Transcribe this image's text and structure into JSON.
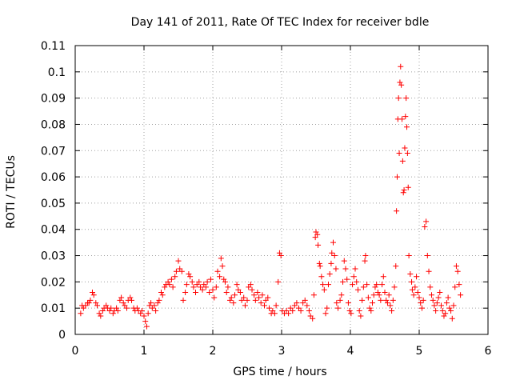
{
  "chart_data": {
    "type": "scatter",
    "title": "Day 141 of 2011, Rate Of TEC Index for receiver bdle",
    "xlabel": "GPS time / hours",
    "ylabel": "ROTI / TECUs",
    "xlim": [
      0,
      6
    ],
    "ylim": [
      0,
      0.11
    ],
    "xticks": [
      "0",
      "1",
      "2",
      "3",
      "4",
      "5",
      "6"
    ],
    "yticks": [
      "0",
      "0.01",
      "0.02",
      "0.03",
      "0.04",
      "0.05",
      "0.06",
      "0.07",
      "0.08",
      "0.09",
      "0.1",
      "0.11"
    ],
    "grid": true,
    "marker": "+",
    "color": "#ff0000",
    "series": [
      {
        "name": "ROTI",
        "points": [
          [
            0.08,
            0.008
          ],
          [
            0.1,
            0.011
          ],
          [
            0.12,
            0.01
          ],
          [
            0.15,
            0.011
          ],
          [
            0.18,
            0.012
          ],
          [
            0.2,
            0.012
          ],
          [
            0.22,
            0.013
          ],
          [
            0.25,
            0.016
          ],
          [
            0.27,
            0.015
          ],
          [
            0.3,
            0.012
          ],
          [
            0.32,
            0.011
          ],
          [
            0.35,
            0.008
          ],
          [
            0.37,
            0.007
          ],
          [
            0.4,
            0.009
          ],
          [
            0.42,
            0.01
          ],
          [
            0.45,
            0.011
          ],
          [
            0.47,
            0.01
          ],
          [
            0.5,
            0.009
          ],
          [
            0.52,
            0.01
          ],
          [
            0.55,
            0.008
          ],
          [
            0.57,
            0.009
          ],
          [
            0.6,
            0.01
          ],
          [
            0.62,
            0.009
          ],
          [
            0.65,
            0.013
          ],
          [
            0.67,
            0.014
          ],
          [
            0.7,
            0.012
          ],
          [
            0.72,
            0.011
          ],
          [
            0.75,
            0.01
          ],
          [
            0.77,
            0.013
          ],
          [
            0.8,
            0.014
          ],
          [
            0.82,
            0.013
          ],
          [
            0.85,
            0.01
          ],
          [
            0.87,
            0.009
          ],
          [
            0.9,
            0.01
          ],
          [
            0.92,
            0.009
          ],
          [
            0.95,
            0.008
          ],
          [
            0.97,
            0.009
          ],
          [
            1.0,
            0.007
          ],
          [
            1.02,
            0.005
          ],
          [
            1.04,
            0.003
          ],
          [
            1.06,
            0.008
          ],
          [
            1.08,
            0.011
          ],
          [
            1.1,
            0.012
          ],
          [
            1.12,
            0.01
          ],
          [
            1.15,
            0.011
          ],
          [
            1.17,
            0.009
          ],
          [
            1.2,
            0.012
          ],
          [
            1.22,
            0.013
          ],
          [
            1.25,
            0.016
          ],
          [
            1.27,
            0.015
          ],
          [
            1.3,
            0.018
          ],
          [
            1.32,
            0.019
          ],
          [
            1.35,
            0.02
          ],
          [
            1.37,
            0.019
          ],
          [
            1.4,
            0.021
          ],
          [
            1.42,
            0.018
          ],
          [
            1.45,
            0.022
          ],
          [
            1.47,
            0.024
          ],
          [
            1.5,
            0.028
          ],
          [
            1.52,
            0.025
          ],
          [
            1.55,
            0.024
          ],
          [
            1.57,
            0.013
          ],
          [
            1.6,
            0.016
          ],
          [
            1.62,
            0.019
          ],
          [
            1.65,
            0.023
          ],
          [
            1.67,
            0.022
          ],
          [
            1.7,
            0.02
          ],
          [
            1.72,
            0.018
          ],
          [
            1.75,
            0.016
          ],
          [
            1.77,
            0.019
          ],
          [
            1.8,
            0.02
          ],
          [
            1.82,
            0.018
          ],
          [
            1.85,
            0.017
          ],
          [
            1.87,
            0.019
          ],
          [
            1.9,
            0.018
          ],
          [
            1.92,
            0.02
          ],
          [
            1.95,
            0.016
          ],
          [
            1.97,
            0.021
          ],
          [
            2.0,
            0.017
          ],
          [
            2.02,
            0.014
          ],
          [
            2.05,
            0.018
          ],
          [
            2.07,
            0.024
          ],
          [
            2.1,
            0.022
          ],
          [
            2.12,
            0.029
          ],
          [
            2.14,
            0.026
          ],
          [
            2.16,
            0.021
          ],
          [
            2.18,
            0.02
          ],
          [
            2.2,
            0.016
          ],
          [
            2.22,
            0.018
          ],
          [
            2.25,
            0.013
          ],
          [
            2.27,
            0.014
          ],
          [
            2.3,
            0.012
          ],
          [
            2.32,
            0.015
          ],
          [
            2.35,
            0.019
          ],
          [
            2.37,
            0.017
          ],
          [
            2.4,
            0.016
          ],
          [
            2.42,
            0.013
          ],
          [
            2.45,
            0.014
          ],
          [
            2.47,
            0.011
          ],
          [
            2.5,
            0.013
          ],
          [
            2.52,
            0.018
          ],
          [
            2.55,
            0.019
          ],
          [
            2.57,
            0.017
          ],
          [
            2.6,
            0.015
          ],
          [
            2.62,
            0.013
          ],
          [
            2.65,
            0.016
          ],
          [
            2.67,
            0.014
          ],
          [
            2.7,
            0.012
          ],
          [
            2.72,
            0.015
          ],
          [
            2.75,
            0.011
          ],
          [
            2.77,
            0.013
          ],
          [
            2.8,
            0.014
          ],
          [
            2.82,
            0.01
          ],
          [
            2.85,
            0.008
          ],
          [
            2.87,
            0.009
          ],
          [
            2.9,
            0.008
          ],
          [
            2.92,
            0.011
          ],
          [
            2.95,
            0.02
          ],
          [
            2.97,
            0.031
          ],
          [
            2.99,
            0.03
          ],
          [
            3.01,
            0.009
          ],
          [
            3.04,
            0.008
          ],
          [
            3.07,
            0.009
          ],
          [
            3.1,
            0.008
          ],
          [
            3.13,
            0.01
          ],
          [
            3.16,
            0.009
          ],
          [
            3.19,
            0.011
          ],
          [
            3.22,
            0.012
          ],
          [
            3.25,
            0.01
          ],
          [
            3.28,
            0.009
          ],
          [
            3.31,
            0.012
          ],
          [
            3.34,
            0.013
          ],
          [
            3.37,
            0.011
          ],
          [
            3.4,
            0.009
          ],
          [
            3.42,
            0.007
          ],
          [
            3.45,
            0.006
          ],
          [
            3.47,
            0.015
          ],
          [
            3.49,
            0.037
          ],
          [
            3.5,
            0.039
          ],
          [
            3.52,
            0.038
          ],
          [
            3.53,
            0.034
          ],
          [
            3.55,
            0.027
          ],
          [
            3.56,
            0.026
          ],
          [
            3.58,
            0.022
          ],
          [
            3.6,
            0.019
          ],
          [
            3.62,
            0.017
          ],
          [
            3.64,
            0.008
          ],
          [
            3.66,
            0.01
          ],
          [
            3.68,
            0.019
          ],
          [
            3.7,
            0.023
          ],
          [
            3.72,
            0.027
          ],
          [
            3.73,
            0.031
          ],
          [
            3.75,
            0.035
          ],
          [
            3.77,
            0.03
          ],
          [
            3.79,
            0.025
          ],
          [
            3.8,
            0.012
          ],
          [
            3.82,
            0.01
          ],
          [
            3.85,
            0.013
          ],
          [
            3.87,
            0.015
          ],
          [
            3.89,
            0.02
          ],
          [
            3.91,
            0.028
          ],
          [
            3.93,
            0.025
          ],
          [
            3.95,
            0.021
          ],
          [
            3.97,
            0.012
          ],
          [
            3.99,
            0.009
          ],
          [
            4.01,
            0.008
          ],
          [
            4.03,
            0.019
          ],
          [
            4.05,
            0.022
          ],
          [
            4.07,
            0.025
          ],
          [
            4.09,
            0.02
          ],
          [
            4.11,
            0.017
          ],
          [
            4.13,
            0.009
          ],
          [
            4.15,
            0.007
          ],
          [
            4.17,
            0.013
          ],
          [
            4.19,
            0.018
          ],
          [
            4.21,
            0.028
          ],
          [
            4.22,
            0.03
          ],
          [
            4.24,
            0.019
          ],
          [
            4.26,
            0.014
          ],
          [
            4.28,
            0.01
          ],
          [
            4.3,
            0.009
          ],
          [
            4.32,
            0.012
          ],
          [
            4.34,
            0.015
          ],
          [
            4.36,
            0.018
          ],
          [
            4.38,
            0.019
          ],
          [
            4.4,
            0.016
          ],
          [
            4.42,
            0.015
          ],
          [
            4.44,
            0.013
          ],
          [
            4.46,
            0.019
          ],
          [
            4.48,
            0.022
          ],
          [
            4.5,
            0.016
          ],
          [
            4.52,
            0.013
          ],
          [
            4.54,
            0.012
          ],
          [
            4.56,
            0.015
          ],
          [
            4.58,
            0.011
          ],
          [
            4.6,
            0.009
          ],
          [
            4.62,
            0.013
          ],
          [
            4.64,
            0.018
          ],
          [
            4.66,
            0.026
          ],
          [
            4.67,
            0.047
          ],
          [
            4.68,
            0.06
          ],
          [
            4.69,
            0.082
          ],
          [
            4.7,
            0.09
          ],
          [
            4.71,
            0.069
          ],
          [
            4.72,
            0.096
          ],
          [
            4.73,
            0.102
          ],
          [
            4.74,
            0.095
          ],
          [
            4.75,
            0.082
          ],
          [
            4.76,
            0.066
          ],
          [
            4.77,
            0.054
          ],
          [
            4.78,
            0.055
          ],
          [
            4.79,
            0.071
          ],
          [
            4.8,
            0.083
          ],
          [
            4.81,
            0.09
          ],
          [
            4.82,
            0.079
          ],
          [
            4.83,
            0.069
          ],
          [
            4.84,
            0.056
          ],
          [
            4.85,
            0.03
          ],
          [
            4.87,
            0.023
          ],
          [
            4.89,
            0.02
          ],
          [
            4.9,
            0.017
          ],
          [
            4.92,
            0.015
          ],
          [
            4.94,
            0.018
          ],
          [
            4.96,
            0.022
          ],
          [
            4.98,
            0.016
          ],
          [
            5.0,
            0.014
          ],
          [
            5.02,
            0.012
          ],
          [
            5.04,
            0.01
          ],
          [
            5.06,
            0.013
          ],
          [
            5.08,
            0.041
          ],
          [
            5.1,
            0.043
          ],
          [
            5.12,
            0.03
          ],
          [
            5.14,
            0.024
          ],
          [
            5.16,
            0.018
          ],
          [
            5.18,
            0.015
          ],
          [
            5.2,
            0.013
          ],
          [
            5.22,
            0.011
          ],
          [
            5.24,
            0.009
          ],
          [
            5.26,
            0.012
          ],
          [
            5.28,
            0.014
          ],
          [
            5.3,
            0.016
          ],
          [
            5.32,
            0.011
          ],
          [
            5.34,
            0.009
          ],
          [
            5.36,
            0.007
          ],
          [
            5.38,
            0.008
          ],
          [
            5.4,
            0.012
          ],
          [
            5.42,
            0.014
          ],
          [
            5.44,
            0.01
          ],
          [
            5.46,
            0.009
          ],
          [
            5.48,
            0.006
          ],
          [
            5.5,
            0.011
          ],
          [
            5.52,
            0.018
          ],
          [
            5.54,
            0.026
          ],
          [
            5.56,
            0.024
          ],
          [
            5.58,
            0.019
          ],
          [
            5.6,
            0.015
          ]
        ]
      }
    ]
  }
}
